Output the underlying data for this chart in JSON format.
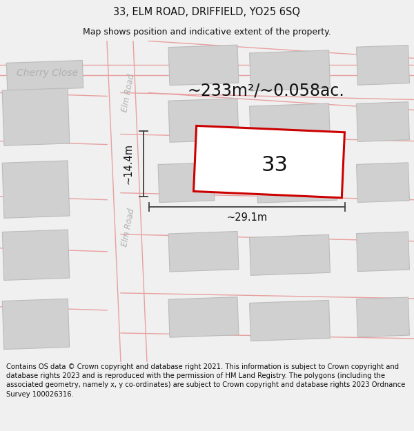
{
  "title_line1": "33, ELM ROAD, DRIFFIELD, YO25 6SQ",
  "title_line2": "Map shows position and indicative extent of the property.",
  "area_text": "~233m²/~0.058ac.",
  "property_number": "33",
  "dim_width": "~29.1m",
  "dim_height": "~14.4m",
  "road_label_upper": "Elm Road",
  "road_label_lower": "Elm Road",
  "street_label": "Cherry Close",
  "footer_text": "Contains OS data © Crown copyright and database right 2021. This information is subject to Crown copyright and database rights 2023 and is reproduced with the permission of HM Land Registry. The polygons (including the associated geometry, namely x, y co-ordinates) are subject to Crown copyright and database rights 2023 Ordnance Survey 100026316.",
  "bg_color": "#f0f0f0",
  "map_bg": "#ffffff",
  "block_color": "#d0d0d0",
  "block_edge": "#bbbbbb",
  "road_line_color": "#e8a0a0",
  "property_fill": "#ffffff",
  "property_edge": "#cc0000",
  "dim_line_color": "#404040",
  "text_color": "#111111",
  "road_text_color": "#b0b0b0",
  "title_fontsize": 10.5,
  "subtitle_fontsize": 9,
  "area_fontsize": 17,
  "number_fontsize": 22,
  "footer_fontsize": 7.2,
  "road_label_fontsize": 8.5,
  "street_label_fontsize": 10
}
